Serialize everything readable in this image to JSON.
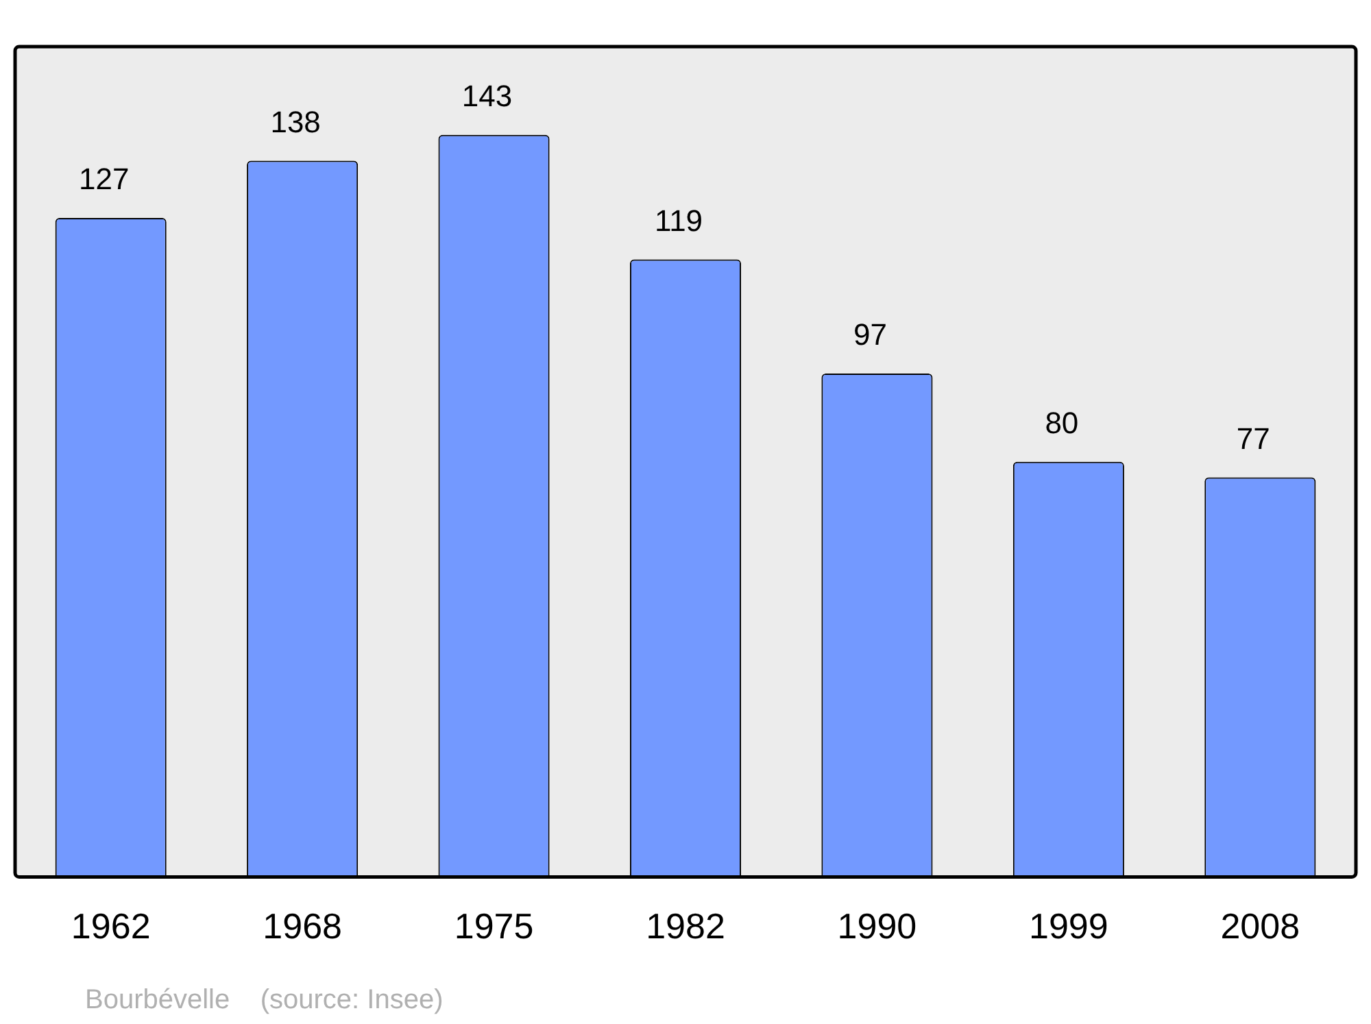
{
  "chart_data": {
    "type": "bar",
    "categories": [
      "1962",
      "1968",
      "1975",
      "1982",
      "1990",
      "1999",
      "2008"
    ],
    "values": [
      127,
      138,
      143,
      119,
      97,
      80,
      77
    ],
    "color": "#7399ff",
    "data_labels": true,
    "annotations": [
      "Bourbévelle    (source: Insee)"
    ]
  }
}
